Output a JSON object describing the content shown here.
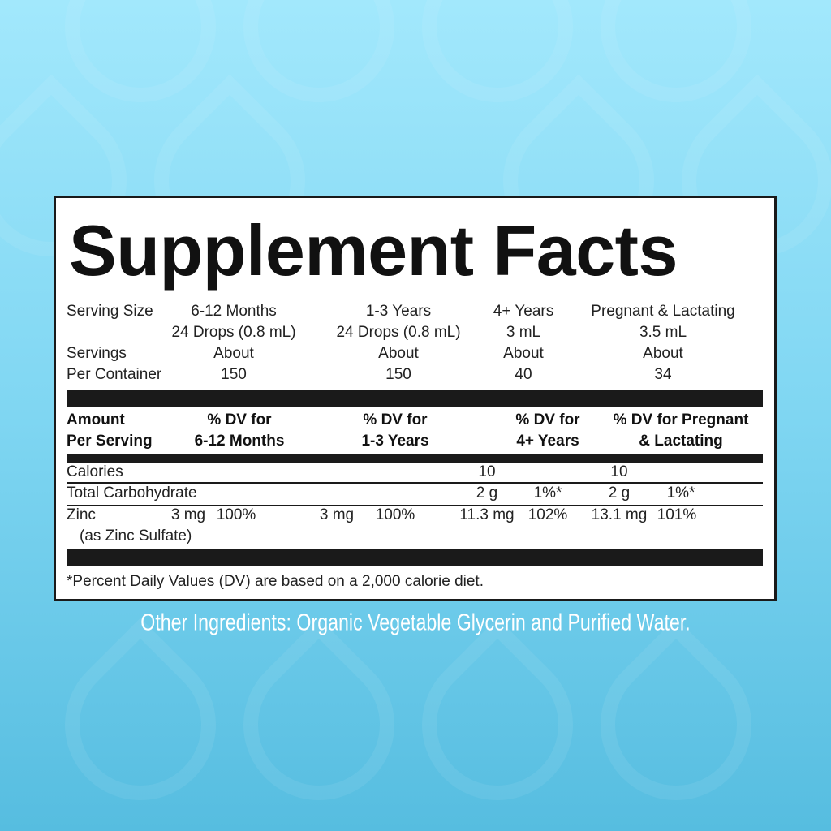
{
  "title": "Supplement Facts",
  "serving": {
    "size_label": "Serving Size",
    "servings_label": "Servings",
    "per_container_label": "Per Container",
    "columns": [
      {
        "group": "6-12 Months",
        "size": "24 Drops (0.8 mL)",
        "about": "About",
        "count": "150"
      },
      {
        "group": "1-3 Years",
        "size": "24 Drops (0.8 mL)",
        "about": "About",
        "count": "150"
      },
      {
        "group": "4+ Years",
        "size": "3 mL",
        "about": "About",
        "count": "40"
      },
      {
        "group": "Pregnant & Lactating",
        "size": "3.5 mL",
        "about": "About",
        "count": "34"
      }
    ]
  },
  "header": {
    "amount1": "Amount",
    "amount2": "Per Serving",
    "cols": [
      [
        "% DV for",
        "6-12 Months"
      ],
      [
        "% DV for",
        "1-3 Years"
      ],
      [
        "% DV for",
        "4+ Years"
      ],
      [
        "% DV for Pregnant",
        "& Lactating"
      ]
    ]
  },
  "rows": {
    "calories": {
      "name": "Calories",
      "c3": "10",
      "c4": "10"
    },
    "carb": {
      "name": "Total Carbohydrate",
      "c3a": "2 g",
      "c3b": "1%*",
      "c4a": "2 g",
      "c4b": "1%*"
    },
    "zinc": {
      "name": "Zinc",
      "sub": "(as Zinc Sulfate)",
      "c1a": "3 mg",
      "c1b": "100%",
      "c2a": "3 mg",
      "c2b": "100%",
      "c3a": "11.3 mg",
      "c3b": "102%",
      "c4a": "13.1 mg",
      "c4b": "101%"
    }
  },
  "footnote": "*Percent Daily Values (DV) are based on a 2,000 calorie diet.",
  "other_ingredients": "Other Ingredients: Organic Vegetable Glycerin and Purified Water.",
  "colors": {
    "background_top": "#a2e8fc",
    "background_bottom": "#56bde0",
    "text": "#111111"
  }
}
